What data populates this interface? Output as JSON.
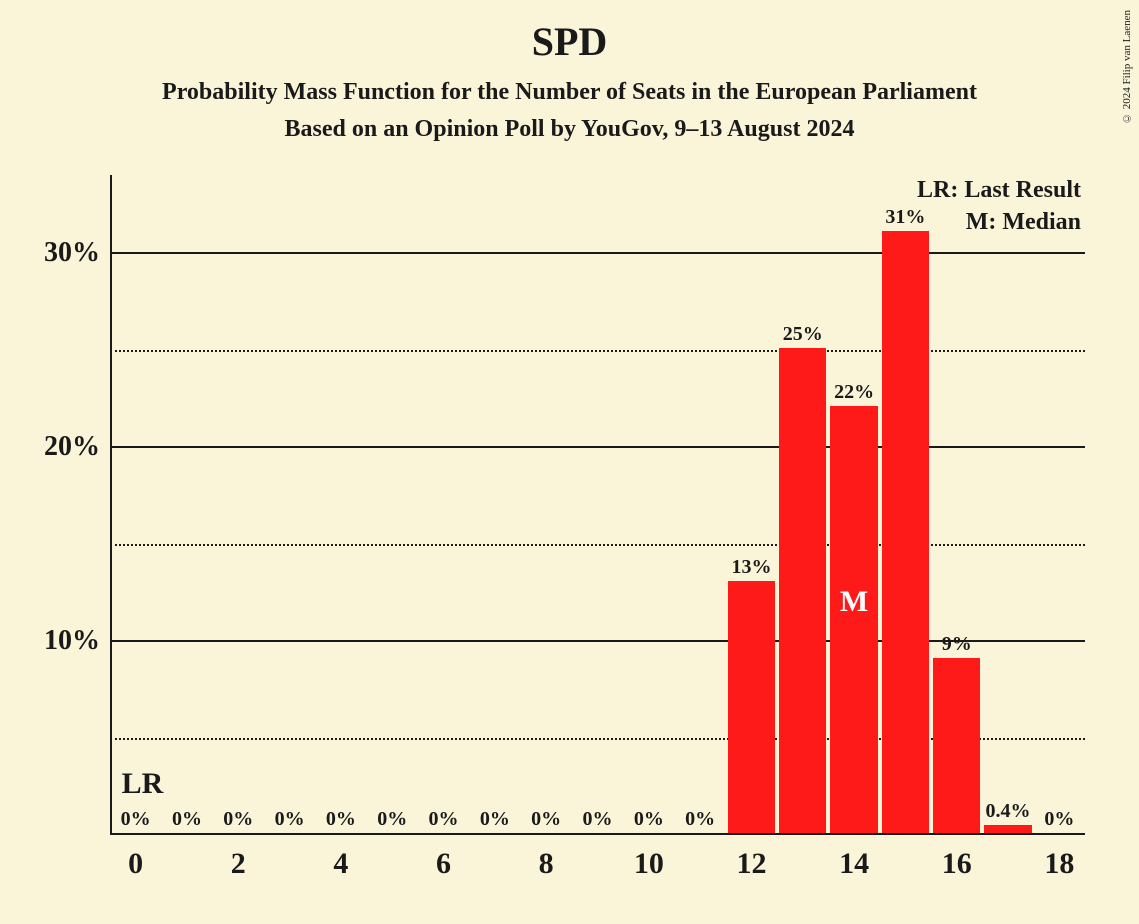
{
  "title": "SPD",
  "subtitle1": "Probability Mass Function for the Number of Seats in the European Parliament",
  "subtitle2": "Based on an Opinion Poll by YouGov, 9–13 August 2024",
  "credit": "© 2024 Filip van Laenen",
  "chart": {
    "type": "bar",
    "background_color": "#faf5d9",
    "bar_color": "#ff1a1a",
    "axis_color": "#1a1a1a",
    "grid_color": "#1a1a1a",
    "x_min": -0.5,
    "x_max": 18.5,
    "y_min": 0,
    "y_max": 34,
    "y_ticks": [
      10,
      20,
      30
    ],
    "y_tick_labels": [
      "10%",
      "20%",
      "30%"
    ],
    "y_minor_ticks": [
      5,
      15,
      25
    ],
    "x_ticks": [
      0,
      2,
      4,
      6,
      8,
      10,
      12,
      14,
      16,
      18
    ],
    "x_tick_labels": [
      "0",
      "2",
      "4",
      "6",
      "8",
      "10",
      "12",
      "14",
      "16",
      "18"
    ],
    "bar_relative_width": 0.92,
    "bars": [
      {
        "x": 0,
        "value": 0,
        "label": "0%"
      },
      {
        "x": 1,
        "value": 0,
        "label": "0%"
      },
      {
        "x": 2,
        "value": 0,
        "label": "0%"
      },
      {
        "x": 3,
        "value": 0,
        "label": "0%"
      },
      {
        "x": 4,
        "value": 0,
        "label": "0%"
      },
      {
        "x": 5,
        "value": 0,
        "label": "0%"
      },
      {
        "x": 6,
        "value": 0,
        "label": "0%"
      },
      {
        "x": 7,
        "value": 0,
        "label": "0%"
      },
      {
        "x": 8,
        "value": 0,
        "label": "0%"
      },
      {
        "x": 9,
        "value": 0,
        "label": "0%"
      },
      {
        "x": 10,
        "value": 0,
        "label": "0%"
      },
      {
        "x": 11,
        "value": 0,
        "label": "0%"
      },
      {
        "x": 12,
        "value": 13,
        "label": "13%"
      },
      {
        "x": 13,
        "value": 25,
        "label": "25%"
      },
      {
        "x": 14,
        "value": 22,
        "label": "22%",
        "median": true
      },
      {
        "x": 15,
        "value": 31,
        "label": "31%"
      },
      {
        "x": 16,
        "value": 9,
        "label": "9%"
      },
      {
        "x": 17,
        "value": 0.4,
        "label": "0.4%"
      },
      {
        "x": 18,
        "value": 0,
        "label": "0%"
      }
    ],
    "legend": {
      "lr": "LR: Last Result",
      "m": "M: Median"
    },
    "annotations": {
      "lr_text": "LR",
      "lr_at_x": 0,
      "m_text": "M"
    }
  }
}
